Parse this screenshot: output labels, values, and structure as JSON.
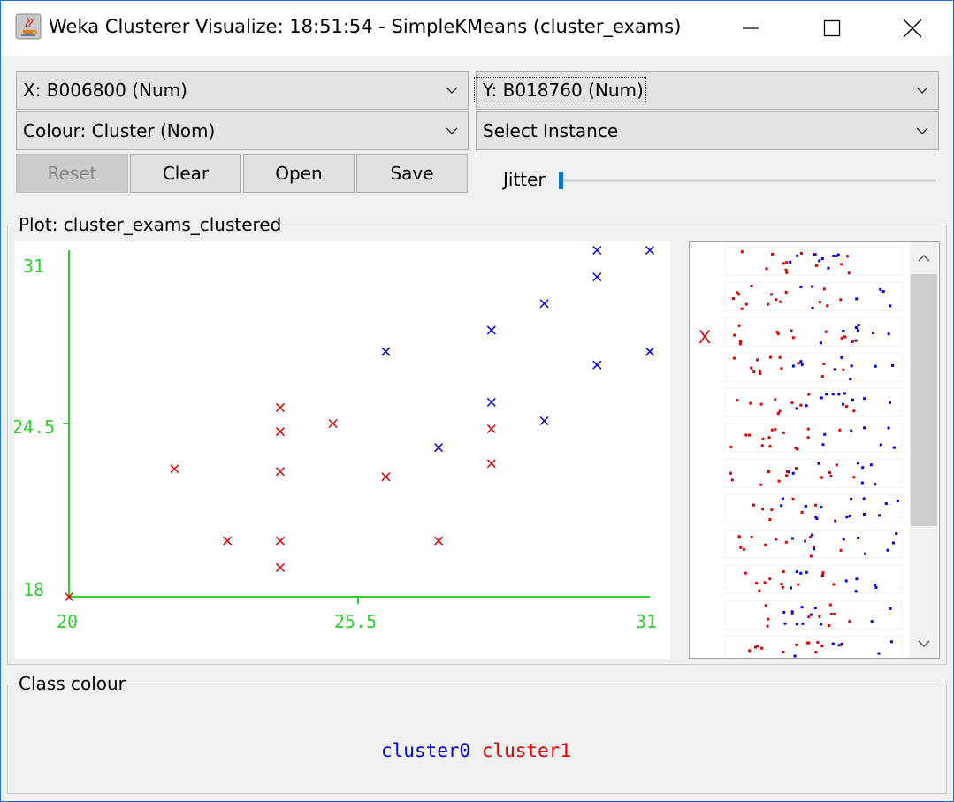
{
  "window": {
    "title": "Weka Clusterer Visualize: 18:51:54 - SimpleKMeans (cluster_exams)",
    "controls": [
      "minimize",
      "maximize",
      "close"
    ]
  },
  "controls": {
    "x_axis": "X: B006800 (Num)",
    "y_axis": "Y: B018760 (Num)",
    "colour": "Colour: Cluster (Nom)",
    "select_instance": "Select Instance",
    "buttons": {
      "reset": "Reset",
      "clear": "Clear",
      "open": "Open",
      "save": "Save"
    },
    "jitter_label": "Jitter",
    "jitter_value": 0
  },
  "plot": {
    "legend": "Plot: cluster_exams_clustered",
    "side_marker": "X"
  },
  "class_colour": {
    "legend": "Class colour",
    "items": [
      {
        "label": "cluster0",
        "color": "#0000dd"
      },
      {
        "label": "cluster1",
        "color": "#dd0000"
      }
    ]
  },
  "chart_data": {
    "type": "scatter",
    "marker": "x",
    "x_ticks": [
      "20",
      "25.5",
      "31"
    ],
    "y_ticks": [
      "31",
      "24.5",
      "18"
    ],
    "xlim": [
      20,
      31
    ],
    "ylim": [
      18,
      31
    ],
    "series": [
      {
        "name": "cluster0",
        "color": "#0000dd",
        "points": [
          [
            30,
            31
          ],
          [
            31,
            31
          ],
          [
            30,
            30
          ],
          [
            29,
            29
          ],
          [
            28,
            28
          ],
          [
            26,
            27.2
          ],
          [
            30,
            26.7
          ],
          [
            31,
            27.2
          ],
          [
            28,
            25.3
          ],
          [
            29,
            24.6
          ],
          [
            27,
            23.6
          ]
        ]
      },
      {
        "name": "cluster1",
        "color": "#dd0000",
        "points": [
          [
            20,
            18
          ],
          [
            22,
            22.8
          ],
          [
            23,
            20.1
          ],
          [
            24,
            20.1
          ],
          [
            24,
            19.1
          ],
          [
            24,
            22.7
          ],
          [
            24,
            24.2
          ],
          [
            24,
            25.1
          ],
          [
            25,
            24.5
          ],
          [
            26,
            22.5
          ],
          [
            27,
            20.1
          ],
          [
            28,
            24.3
          ],
          [
            28,
            23.0
          ]
        ]
      }
    ]
  }
}
